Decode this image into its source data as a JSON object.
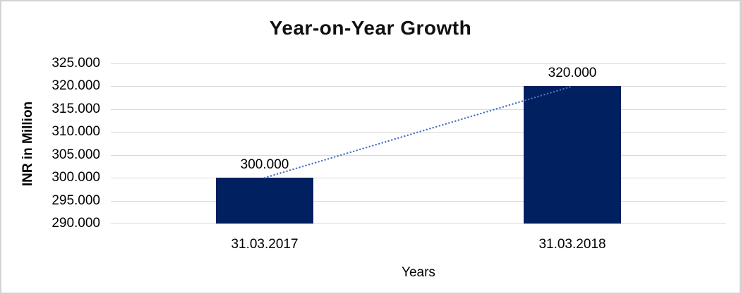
{
  "frame": {
    "background": "#FFFFFF",
    "border_color": "#D3D3D3"
  },
  "chart_data": {
    "type": "bar",
    "title": "Year-on-Year Growth",
    "xlabel": "Years",
    "ylabel": "INR in Million",
    "categories": [
      "31.03.2017",
      "31.03.2018"
    ],
    "values": [
      300000,
      320000
    ],
    "data_labels": [
      "300.000",
      "320.000"
    ],
    "ylim": [
      290000,
      325000
    ],
    "ytick_step": 5000,
    "ytick_labels": [
      "325.000",
      "320.000",
      "315.000",
      "310.000",
      "305.000",
      "300.000",
      "295.000",
      "290.000"
    ],
    "grid": true,
    "legend": "none",
    "bar_color": "#002060",
    "gridline_color": "#D9D9D9",
    "trendline": {
      "type": "linear",
      "style": "dotted",
      "color": "#4472C4",
      "from_value": 300000,
      "to_value": 320000
    }
  }
}
